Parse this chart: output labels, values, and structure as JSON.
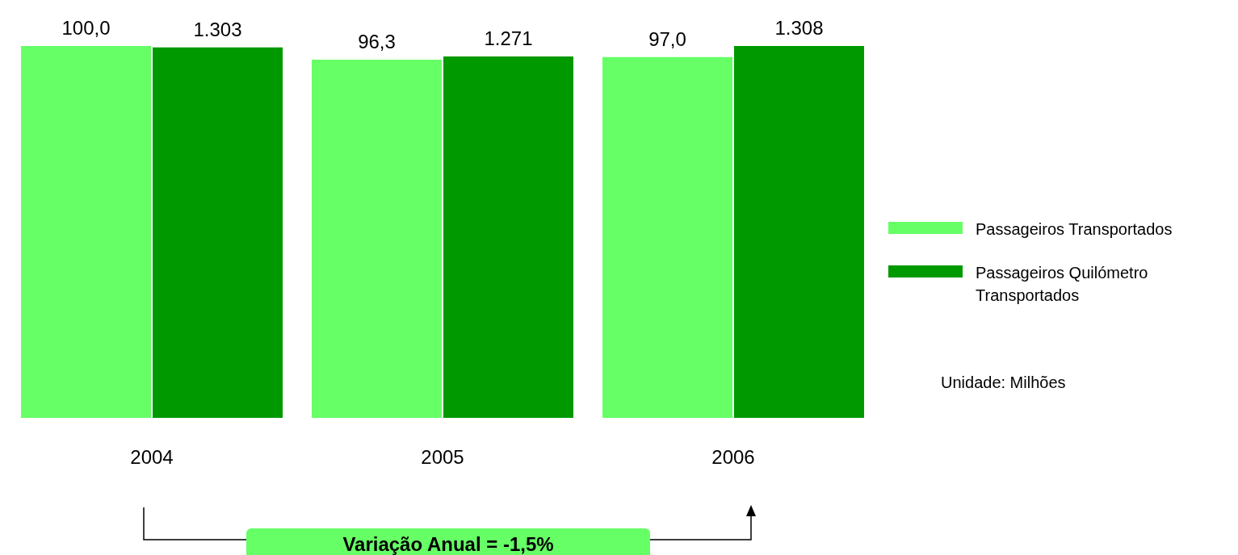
{
  "chart_data": {
    "type": "bar",
    "categories": [
      "2004",
      "2005",
      "2006"
    ],
    "series": [
      {
        "name": "Passageiros Transportados",
        "color": "#66ff66",
        "values": [
          100.0,
          96.3,
          97.0
        ],
        "value_labels": [
          "100,0",
          "96,3",
          "97,0"
        ]
      },
      {
        "name": "Passageiros Quilómetro Transportados",
        "color": "#009900",
        "values": [
          1303,
          1271,
          1308
        ],
        "value_labels": [
          "1.303",
          "1.271",
          "1.308"
        ],
        "axis": "y2"
      }
    ],
    "legend": "right",
    "annotations": [
      "Unidade: Milhões",
      "Variação Anual = -1,5%"
    ]
  }
}
